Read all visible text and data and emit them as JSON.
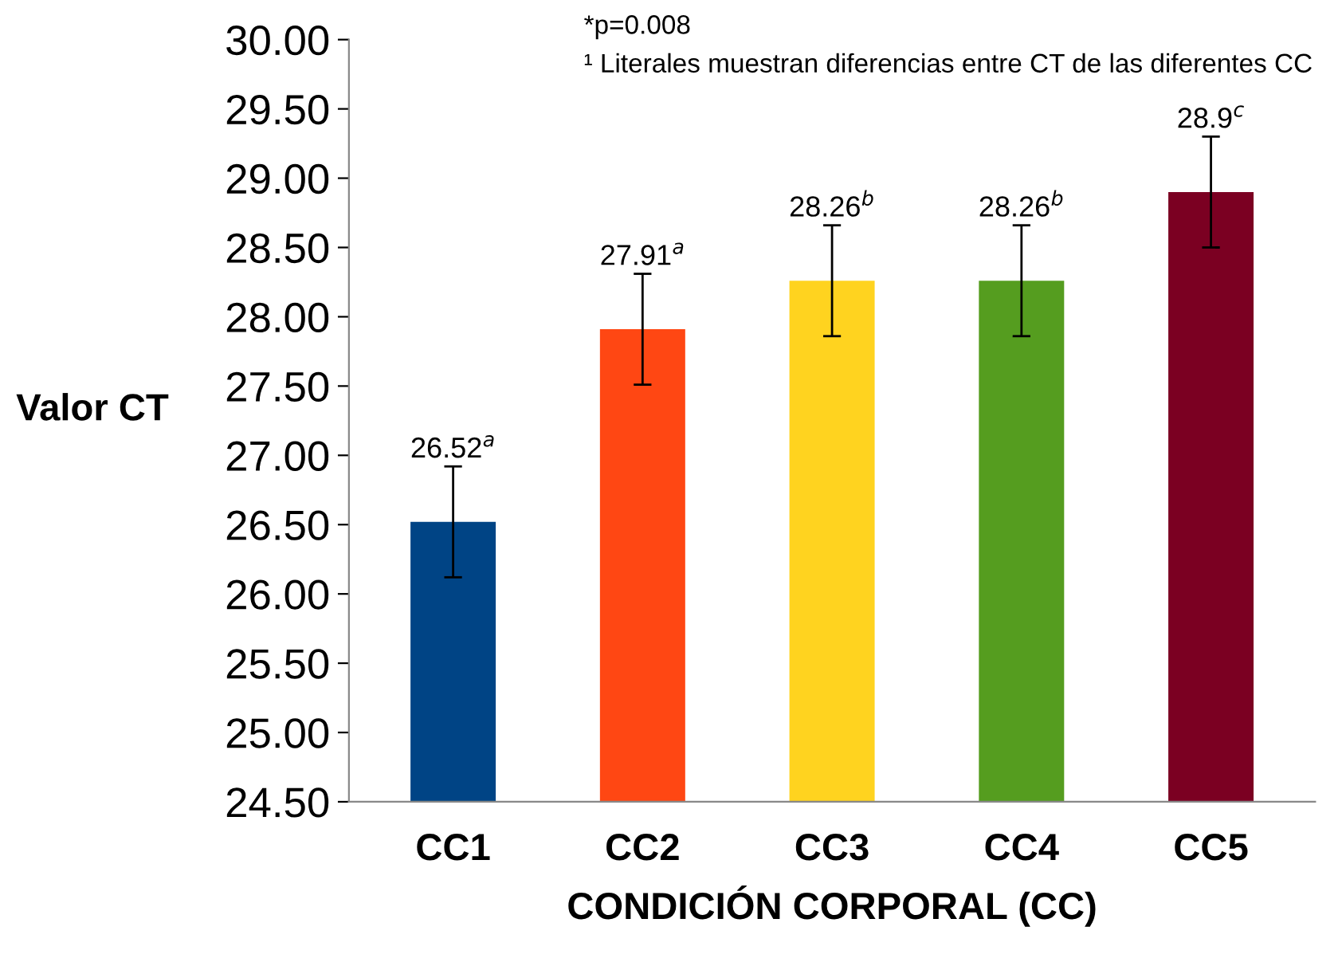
{
  "chart_data": {
    "type": "bar",
    "ylabel": "Valor CT",
    "xlabel": "CONDICIÓN CORPORAL (CC)",
    "categories": [
      "CC1",
      "CC2",
      "CC3",
      "CC4",
      "CC5"
    ],
    "values": [
      26.52,
      27.91,
      28.26,
      28.26,
      28.9
    ],
    "colors": [
      "#004485",
      "#ff4713",
      "#ffd31f",
      "#559d1f",
      "#7b0022"
    ],
    "errors": [
      0.4,
      0.4,
      0.4,
      0.4,
      0.4
    ],
    "value_labels": [
      "26.52$^{a}$",
      "27.91$^{a}$",
      "28.26$^{b}$",
      "28.26$^{b}$",
      "28.9$^{c}$"
    ],
    "ylim": [
      24.5,
      30.0
    ],
    "yticks": [
      {
        "value": 24.5,
        "label": "24.50"
      },
      {
        "value": 25.0,
        "label": "25.00"
      },
      {
        "value": 25.5,
        "label": "25.50"
      },
      {
        "value": 26.0,
        "label": "26.00"
      },
      {
        "value": 26.5,
        "label": "26.50"
      },
      {
        "value": 27.0,
        "label": "27.00"
      },
      {
        "value": 27.5,
        "label": "27.50"
      },
      {
        "value": 28.0,
        "label": "28.00"
      },
      {
        "value": 28.5,
        "label": "28.50"
      },
      {
        "value": 29.0,
        "label": "29.00"
      },
      {
        "value": 29.5,
        "label": "29.50"
      },
      {
        "value": 30.0,
        "label": "30.00"
      }
    ],
    "annotations": [
      "*p=0.008",
      "¹ Literales muestran diferencias entre CT de las diferentes CC"
    ],
    "grid": false,
    "legend": false
  }
}
